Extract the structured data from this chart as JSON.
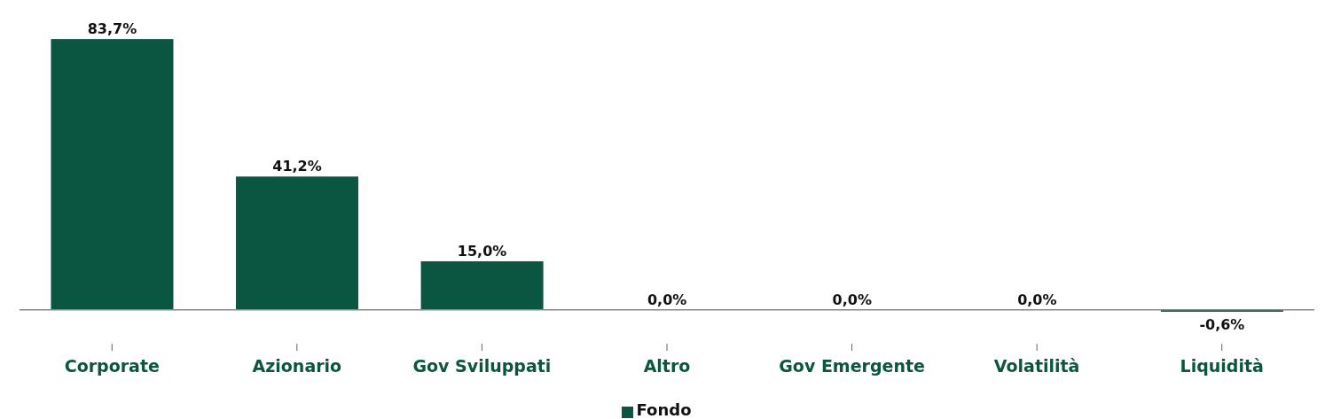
{
  "chart_data": {
    "type": "bar",
    "categories": [
      "Corporate",
      "Azionario",
      "Gov Sviluppati",
      "Altro",
      "Gov Emergente",
      "Volatilità",
      "Liquidità"
    ],
    "series": [
      {
        "name": "Fondo",
        "color": "#0b5640",
        "values": [
          83.7,
          41.2,
          15.0,
          0.0,
          0.0,
          0.0,
          -0.6
        ],
        "value_labels": [
          "83,7%",
          "41,2%",
          "15,0%",
          "0,0%",
          "0,0%",
          "0,0%",
          "-0,6%"
        ]
      }
    ],
    "tick_labels": "x",
    "legend": "bottom"
  }
}
